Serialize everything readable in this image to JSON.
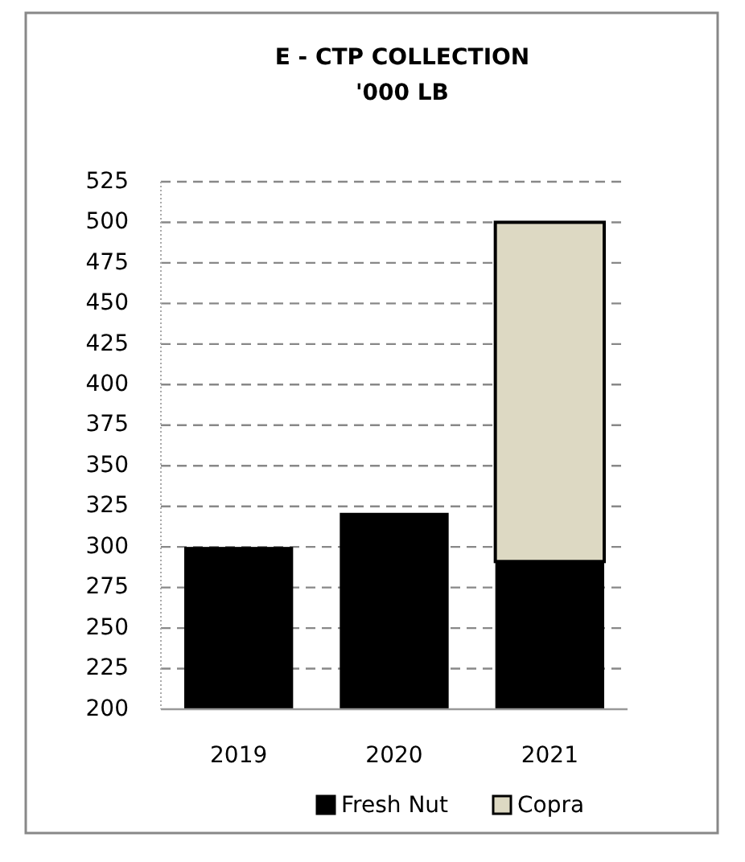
{
  "chart_data": {
    "type": "bar",
    "title": "E - CTP COLLECTION",
    "subtitle": "'000 LB",
    "categories": [
      "2019",
      "2020",
      "2021"
    ],
    "stacked": true,
    "series": [
      {
        "name": "Fresh Nut",
        "color": "#000000",
        "values": [
          300,
          321,
          291
        ]
      },
      {
        "name": "Copra",
        "color": "#ddd9c3",
        "values": [
          null,
          null,
          209
        ]
      }
    ],
    "ylim": [
      200,
      525
    ],
    "yticks": [
      200,
      225,
      250,
      275,
      300,
      325,
      350,
      375,
      400,
      425,
      450,
      475,
      500,
      525
    ],
    "grid": "y",
    "legend": "bottom"
  }
}
